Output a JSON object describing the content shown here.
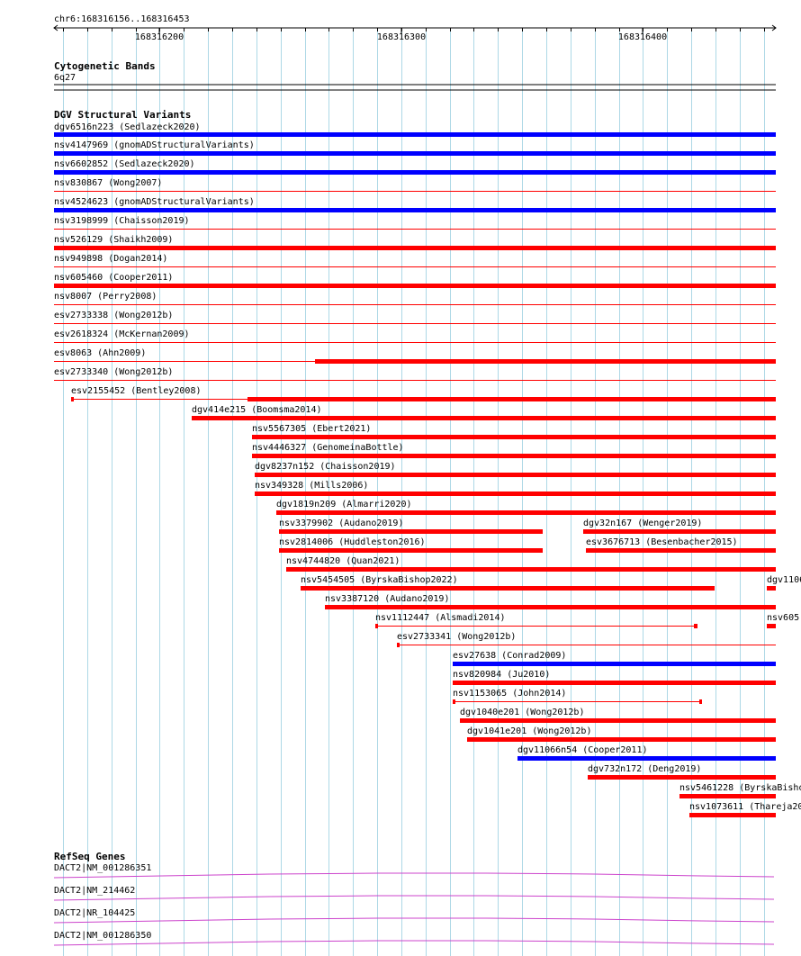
{
  "ruler": {
    "location": "chr6:168316156..168316453",
    "ticks": [
      "168316200",
      "168316300",
      "168316400"
    ]
  },
  "tracks": {
    "cytoband": {
      "title": "Cytogenetic Bands",
      "band": "6q27"
    },
    "dgv": {
      "title": "DGV Structural Variants",
      "features": [
        {
          "label": "dgv6516n223 (Sedlazeck2020)",
          "color": "#0000ff",
          "thick": true
        },
        {
          "label": "nsv4147969 (gnomADStructuralVariants)",
          "color": "#0000ff",
          "thick": true
        },
        {
          "label": "nsv6602852 (Sedlazeck2020)",
          "color": "#0000ff",
          "thick": true
        },
        {
          "label": "nsv830867 (Wong2007)",
          "color": "#ff0000",
          "thick": false
        },
        {
          "label": "nsv4524623 (gnomADStructuralVariants)",
          "color": "#0000ff",
          "thick": true
        },
        {
          "label": "nsv3198999 (Chaisson2019)",
          "color": "#ff0000",
          "thick": false
        },
        {
          "label": "nsv526129 (Shaikh2009)",
          "color": "#ff0000",
          "thick": true
        },
        {
          "label": "nsv949898 (Dogan2014)",
          "color": "#ff0000",
          "thick": false
        },
        {
          "label": "nsv605460 (Cooper2011)",
          "color": "#ff0000",
          "thick": true
        },
        {
          "label": "nsv8007 (Perry2008)",
          "color": "#ff0000",
          "thick": false
        },
        {
          "label": "esv2733338 (Wong2012b)",
          "color": "#ff0000",
          "thick": false
        },
        {
          "label": "esv2618324 (McKernan2009)",
          "color": "#ff0000",
          "thick": false
        },
        {
          "label": "esv8063 (Ahn2009)",
          "color": "#ff0000",
          "thick": false
        },
        {
          "label": "esv2733340 (Wong2012b)",
          "color": "#ff0000",
          "thick": false
        },
        {
          "label": "esv2155452 (Bentley2008)",
          "color": "#ff0000",
          "thick": false
        },
        {
          "label": "dgv414e215 (Boomsma2014)",
          "color": "#ff0000",
          "thick": true
        },
        {
          "label": "nsv5567305 (Ebert2021)",
          "color": "#ff0000",
          "thick": true
        },
        {
          "label": "nsv4446327 (GenomeinaBottle)",
          "color": "#ff0000",
          "thick": true
        },
        {
          "label": "dgv8237n152 (Chaisson2019)",
          "color": "#ff0000",
          "thick": true
        },
        {
          "label": "nsv349328 (Mills2006)",
          "color": "#ff0000",
          "thick": true
        },
        {
          "label": "dgv1819n209 (Almarri2020)",
          "color": "#ff0000",
          "thick": true
        },
        {
          "label": "nsv3379902 (Audano2019)",
          "color": "#ff0000",
          "thick": true
        },
        {
          "label": "dgv32n167 (Wenger2019)",
          "color": "#ff0000",
          "thick": true
        },
        {
          "label": "nsv2814006 (Huddleston2016)",
          "color": "#ff0000",
          "thick": true
        },
        {
          "label": "esv3676713 (Besenbacher2015)",
          "color": "#ff0000",
          "thick": true
        },
        {
          "label": "nsv4744820 (Quan2021)",
          "color": "#ff0000",
          "thick": true
        },
        {
          "label": "nsv5454505 (ByrskaBishop2022)",
          "color": "#ff0000",
          "thick": true
        },
        {
          "label": "dgv1106",
          "color": "#ff0000",
          "thick": true
        },
        {
          "label": "nsv3387120 (Audano2019)",
          "color": "#ff0000",
          "thick": true
        },
        {
          "label": "nsv1112447 (Alsmadi2014)",
          "color": "#ff0000",
          "thick": false
        },
        {
          "label": "nsv605",
          "color": "#ff0000",
          "thick": true
        },
        {
          "label": "esv2733341 (Wong2012b)",
          "color": "#ff0000",
          "thick": false
        },
        {
          "label": "esv27638 (Conrad2009)",
          "color": "#0000ff",
          "thick": true
        },
        {
          "label": "nsv820984 (Ju2010)",
          "color": "#ff0000",
          "thick": true
        },
        {
          "label": "nsv1153065 (John2014)",
          "color": "#ff0000",
          "thick": false
        },
        {
          "label": "dgv1040e201 (Wong2012b)",
          "color": "#ff0000",
          "thick": true
        },
        {
          "label": "dgv1041e201 (Wong2012b)",
          "color": "#ff0000",
          "thick": true
        },
        {
          "label": "dgv11066n54 (Cooper2011)",
          "color": "#0000ff",
          "thick": true
        },
        {
          "label": "dgv732n172 (Deng2019)",
          "color": "#ff0000",
          "thick": true
        },
        {
          "label": "nsv5461228 (ByrskaBisho",
          "color": "#ff0000",
          "thick": true
        },
        {
          "label": "nsv1073611 (Thareja20",
          "color": "#ff0000",
          "thick": true
        }
      ]
    },
    "refseq": {
      "title": "RefSeq Genes",
      "color": "#cc44cc",
      "features": [
        {
          "label": "DACT2|NM_001286351"
        },
        {
          "label": "DACT2|NM_214462"
        },
        {
          "label": "DACT2|NR_104425"
        },
        {
          "label": "DACT2|NM_001286350"
        }
      ]
    }
  },
  "colors": {
    "grid": "#add8e6",
    "ruler": "#000000",
    "text": "#000000"
  }
}
